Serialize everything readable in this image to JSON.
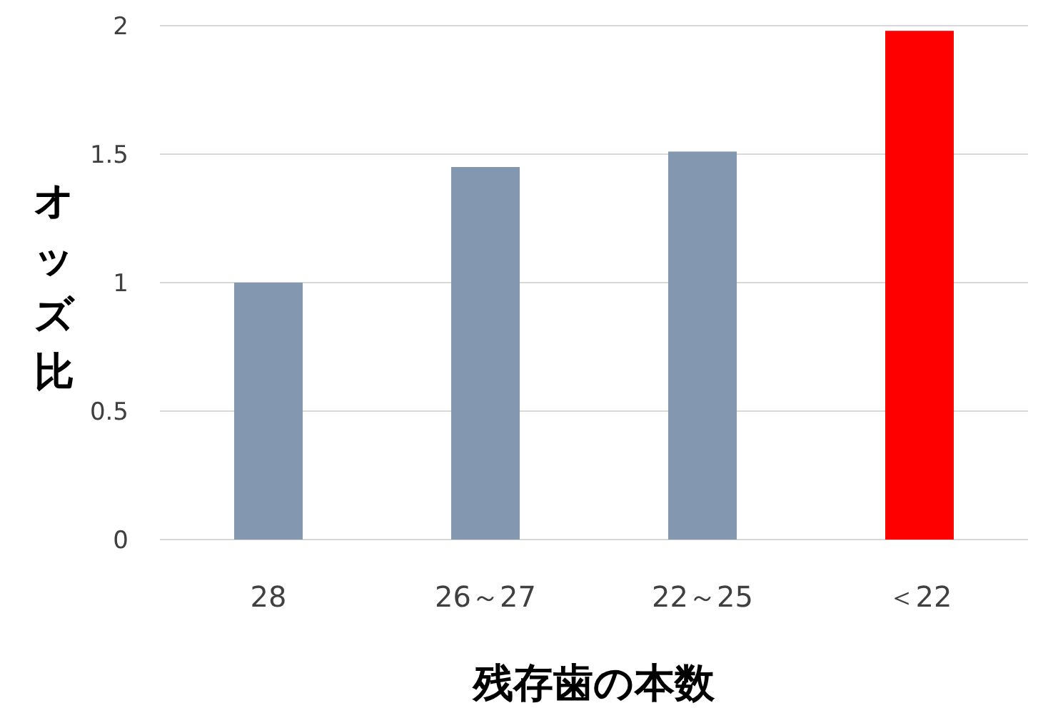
{
  "chart_data": {
    "type": "bar",
    "xlabel": "残存歯の本数",
    "ylabel": "オッズ比",
    "categories": [
      "28",
      "26～27",
      "22～25",
      "＜22"
    ],
    "values": [
      1.0,
      1.45,
      1.51,
      1.98
    ],
    "colors": [
      "#8497b0",
      "#8497b0",
      "#8497b0",
      "#ff0000"
    ],
    "ylim": [
      0,
      2
    ],
    "yticks": [
      0,
      0.5,
      1,
      1.5,
      2
    ],
    "grid": "y"
  }
}
